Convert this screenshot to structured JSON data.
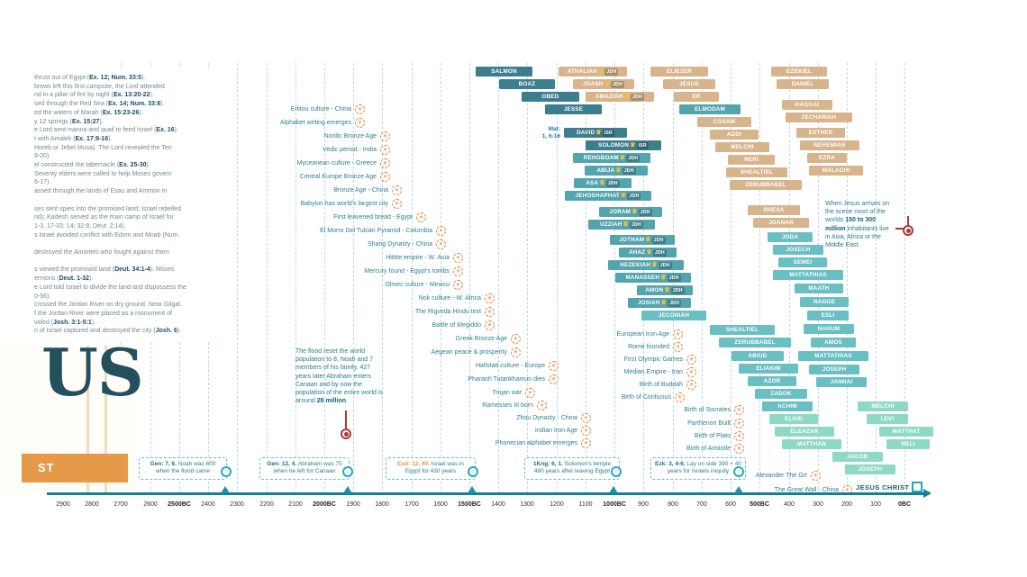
{
  "title": "Biblical genealogy and world history timeline",
  "icons": {
    "crown": "♛",
    "event": "*"
  },
  "colors": {
    "axis": "#177f93",
    "grid": "#2a96aa",
    "dark_teal": "#3d7e8e",
    "medium_teal": "#54a4ad",
    "light_teal": "#6abfc3",
    "pale_teal": "#8ed9c6",
    "tan": "#d7b48c",
    "orange": "#e8823c",
    "crimson": "#a83a3a",
    "callout_teal": "#2aa9c2",
    "text_teal": "#2e7f8e"
  },
  "chart_data": {
    "type": "bar",
    "title": "Genealogies of Jesus (Matthew & Luke) with kings, prophets and world events, 2900 BC to 0 BC",
    "x_range": [
      2900,
      0
    ],
    "axis": {
      "y": 548,
      "ticks": [
        [
          "2900",
          70
        ],
        [
          "2800",
          102
        ],
        [
          "2700",
          134
        ],
        [
          "2600",
          167
        ],
        [
          "2500BC",
          199
        ],
        [
          "2400",
          231
        ],
        [
          "2300",
          263
        ],
        [
          "2200",
          296
        ],
        [
          "2100",
          328
        ],
        [
          "2000BC",
          360
        ],
        [
          "1900",
          392
        ],
        [
          "1800",
          424
        ],
        [
          "1700",
          457
        ],
        [
          "1600",
          489
        ],
        [
          "1500BC",
          521
        ],
        [
          "1400",
          553
        ],
        [
          "1300",
          585
        ],
        [
          "1200",
          618
        ],
        [
          "1100",
          650
        ],
        [
          "1000BC",
          682
        ],
        [
          "900",
          714
        ],
        [
          "800",
          747
        ],
        [
          "700",
          779
        ],
        [
          "600",
          811
        ],
        [
          "500BC",
          843
        ],
        [
          "400",
          876
        ],
        [
          "300",
          908
        ],
        [
          "200",
          940
        ],
        [
          "100",
          972
        ],
        [
          "0BC",
          1004
        ]
      ],
      "gridlines": [
        134,
        167,
        199,
        231,
        263,
        296,
        328,
        360,
        392,
        424,
        457,
        489,
        521,
        553,
        585,
        618,
        650,
        682,
        714,
        747,
        779,
        811,
        843,
        876,
        908,
        940,
        972,
        1004
      ],
      "markers": [
        250,
        386,
        524,
        681,
        820
      ]
    },
    "bars": [
      [
        "SALMON",
        528,
        74,
        63,
        "dark"
      ],
      [
        "BOAZ",
        554,
        88,
        62,
        "dark"
      ],
      [
        "OBED",
        579,
        102,
        64,
        "dark"
      ],
      [
        "JESSE",
        605,
        116,
        63,
        "dark"
      ],
      [
        "DAVID",
        626,
        142,
        70,
        "dark",
        "ISR"
      ],
      [
        "SOLOMON",
        650,
        156,
        84,
        "dark",
        "ISR"
      ],
      [
        "REHOBOAM",
        636,
        170,
        86,
        "med",
        "JDH"
      ],
      [
        "ABIJA",
        649,
        184,
        70,
        "med",
        "JDH"
      ],
      [
        "ASA",
        637,
        198,
        64,
        "med",
        "JDH"
      ],
      [
        "JEHOSHAPHAT",
        627,
        212,
        96,
        "med",
        "JDH"
      ],
      [
        "JORAM",
        665,
        230,
        70,
        "med",
        "JDH"
      ],
      [
        "UZZIAH",
        653,
        244,
        74,
        "med",
        "JDH"
      ],
      [
        "JOTHAM",
        677,
        261,
        72,
        "med",
        "JDH"
      ],
      [
        "AHAZ",
        687,
        275,
        64,
        "med",
        "JDH"
      ],
      [
        "HEZEKIAH",
        675,
        289,
        84,
        "med",
        "JDH"
      ],
      [
        "MANASSEH",
        683,
        303,
        84,
        "med",
        "JDH"
      ],
      [
        "AMON",
        707,
        317,
        62,
        "med",
        "JDH"
      ],
      [
        "JOSIAH",
        697,
        331,
        70,
        "med",
        "JDH"
      ],
      [
        "JECONIAH",
        712,
        345,
        72,
        "light"
      ],
      [
        "SHEALTIEL",
        788,
        361,
        72,
        "light"
      ],
      [
        "ZERUBBABEL",
        798,
        375,
        80,
        "light"
      ],
      [
        "ABIUD",
        812,
        390,
        58,
        "light"
      ],
      [
        "ELIAKIM",
        820,
        404,
        66,
        "light"
      ],
      [
        "AZOR",
        830,
        418,
        54,
        "light"
      ],
      [
        "ZADOK",
        838,
        432,
        58,
        "light"
      ],
      [
        "ACHIM",
        846,
        446,
        56,
        "light"
      ],
      [
        "ELIUD",
        854,
        460,
        54,
        "pale"
      ],
      [
        "ELEAZAR",
        860,
        474,
        66,
        "pale"
      ],
      [
        "MATTHAN",
        868,
        488,
        66,
        "pale"
      ],
      [
        "JACOB",
        924,
        502,
        56,
        "pale"
      ],
      [
        "JOSEPH",
        938,
        516,
        56,
        "pale"
      ],
      [
        "JESUS CHRIST",
        950,
        535,
        60,
        "christ"
      ],
      [
        "ATHALIAH",
        620,
        74,
        76,
        "tan",
        "JDH"
      ],
      [
        "JOASH",
        636,
        88,
        68,
        "tan",
        "JDH"
      ],
      [
        "AMAZIAH",
        650,
        102,
        76,
        "tan",
        "JDH"
      ],
      [
        "ELIEZER",
        722,
        74,
        64,
        "tan"
      ],
      [
        "JESUS",
        736,
        88,
        58,
        "tan"
      ],
      [
        "ER",
        748,
        102,
        50,
        "tan"
      ],
      [
        "ELMODAM",
        754,
        116,
        68,
        "med"
      ],
      [
        "COSAM",
        774,
        130,
        60,
        "tan"
      ],
      [
        "ADDI",
        788,
        144,
        54,
        "tan"
      ],
      [
        "MELCHI",
        794,
        158,
        60,
        "tan"
      ],
      [
        "NERI",
        808,
        172,
        52,
        "tan"
      ],
      [
        "SHEALTIEL",
        806,
        186,
        68,
        "tan"
      ],
      [
        "ZERUBBABEL",
        810,
        200,
        80,
        "tan"
      ],
      [
        "RHESA",
        830,
        228,
        58,
        "tan"
      ],
      [
        "JOANAN",
        836,
        242,
        62,
        "tan"
      ],
      [
        "JODA",
        852,
        258,
        50,
        "light"
      ],
      [
        "JOSECH",
        858,
        272,
        56,
        "light"
      ],
      [
        "SEMEI",
        864,
        286,
        54,
        "light"
      ],
      [
        "MATTATHIAS",
        858,
        300,
        78,
        "light"
      ],
      [
        "MAATH",
        882,
        315,
        54,
        "light"
      ],
      [
        "NAGGE",
        888,
        330,
        54,
        "light"
      ],
      [
        "ESLI",
        896,
        345,
        46,
        "light"
      ],
      [
        "NAHUM",
        892,
        360,
        56,
        "light"
      ],
      [
        "AMOS",
        900,
        375,
        50,
        "light"
      ],
      [
        "MATTATHIAS",
        886,
        390,
        78,
        "light"
      ],
      [
        "JOSEPH",
        898,
        405,
        56,
        "light"
      ],
      [
        "JANNAI",
        906,
        419,
        56,
        "light"
      ],
      [
        "MELCHI",
        952,
        446,
        56,
        "pale"
      ],
      [
        "LEVI",
        962,
        460,
        46,
        "pale"
      ],
      [
        "MATTHAT",
        976,
        474,
        60,
        "pale"
      ],
      [
        "HELI",
        984,
        488,
        48,
        "pale"
      ],
      [
        "EZEKIEL",
        856,
        74,
        62,
        "tan"
      ],
      [
        "DANIEL",
        862,
        88,
        58,
        "tan"
      ],
      [
        "HAGGAI",
        868,
        111,
        56,
        "tan"
      ],
      [
        "ZECHARIAH",
        872,
        125,
        74,
        "tan"
      ],
      [
        "ESTHER",
        884,
        142,
        54,
        "tan"
      ],
      [
        "NEHEMIAH",
        888,
        156,
        66,
        "tan"
      ],
      [
        "EZRA",
        896,
        170,
        44,
        "tan"
      ],
      [
        "MALACHI",
        898,
        184,
        60,
        "tan"
      ]
    ],
    "world_events": [
      [
        "Erlitou culture - China",
        399,
        121
      ],
      [
        "Alphabet writing emerges",
        399,
        136
      ],
      [
        "Nordic Bronze Age",
        427,
        151
      ],
      [
        "Vedic period - India",
        427,
        166
      ],
      [
        "Myceanean culture - Greece",
        427,
        181
      ],
      [
        "Central Europe Bronze Age",
        427,
        196
      ],
      [
        "Bronze Age - China",
        440,
        211
      ],
      [
        "Babylon has world's largest city",
        440,
        226
      ],
      [
        "First leavened bread - Egypt",
        467,
        241
      ],
      [
        "El Morro Del Tulcán Pyramid - Columbia",
        489,
        256
      ],
      [
        "Shang Dynasty - China",
        489,
        271
      ],
      [
        "Hittite empire - W. Asia",
        508,
        286
      ],
      [
        "Mercury found - Egypt's tombs",
        508,
        301
      ],
      [
        "Olmec culture - Mexico",
        508,
        316
      ],
      [
        "Nok culture - W. Africa",
        543,
        331
      ],
      [
        "The Rigveda Hindu text",
        543,
        346
      ],
      [
        "Battle of Megiddo",
        543,
        361
      ],
      [
        "Greek Bronze Age",
        572,
        376
      ],
      [
        "Aegean peace & prosperity",
        572,
        391
      ],
      [
        "Hallstatt culture - Europe",
        614,
        406
      ],
      [
        "Pharaoh Tutankhamun dies",
        614,
        421
      ],
      [
        "Trojan war",
        588,
        436
      ],
      [
        "Ramesses III born",
        601,
        450
      ],
      [
        "Zhou Dynasty - China",
        650,
        464
      ],
      [
        "Indian Iron Age",
        650,
        478
      ],
      [
        "Phonecian alphabet emerges",
        650,
        492
      ],
      [
        "European Iron Age",
        752,
        371
      ],
      [
        "Rome founded",
        752,
        385
      ],
      [
        "First Olympic Games",
        767,
        399
      ],
      [
        "Median Empire - Iran",
        767,
        413
      ],
      [
        "Birth of Buddah",
        767,
        427
      ],
      [
        "Birth of Confucius",
        754,
        441
      ],
      [
        "Birth of Socrates",
        820,
        455
      ],
      [
        "Parthenon Built",
        820,
        470
      ],
      [
        "Birth of Plato",
        820,
        484
      ],
      [
        "Birth of Aristotle",
        820,
        498
      ],
      [
        "Alexander The Grt",
        905,
        528
      ],
      [
        "The Great Wall - China",
        940,
        544
      ]
    ],
    "callouts": [
      {
        "ref": "Gen: 7, 6.",
        "text": "Noah was 600 when the flood came",
        "x": 154,
        "w": 88,
        "icon_x": 251,
        "hl": false
      },
      {
        "ref": "Gen: 12, 4.",
        "text": "Abraham was 75 when he left for Canaan",
        "x": 288,
        "w": 90,
        "icon_x": 386,
        "hl": false
      },
      {
        "ref": "Exd: 12, 40.",
        "text": "Israel was in Egypt for 430 years",
        "x": 428,
        "w": 90,
        "icon_x": 525,
        "hl": true
      },
      {
        "ref": "1Kng: 6, 1.",
        "text": "Solomon's temple 480 years after leaving Egypt",
        "x": 582,
        "w": 96,
        "icon_x": 684,
        "hl": false
      },
      {
        "ref": "Ezk: 3, 4-6.",
        "text": "Lay on side 390 + 40 years for Israels iniquity",
        "x": 722,
        "w": 96,
        "icon_x": 820,
        "hl": false
      }
    ],
    "annotations": {
      "flood": {
        "parts": [
          {
            "t": "The flood reset the world population to 8, Noah and 7 members of his family.  427 years later Abraham enters Canaan and by now the population of the entire world is around ",
            "b": false
          },
          {
            "t": "28 million",
            "b": true
          },
          {
            "t": ".",
            "b": false
          }
        ]
      },
      "population": {
        "parts": [
          {
            "t": "When Jesus arrives on the scene most of the worlds ",
            "b": false
          },
          {
            "t": "150 to 300 million",
            "b": true
          },
          {
            "t": " inhabitants live in Asia, Africa or the Middle East.",
            "b": false
          }
        ]
      }
    }
  },
  "matthew_ref": {
    "line1": "Mat:",
    "line2": "1, 6-16"
  },
  "logo": {
    "big_text": "US",
    "band_text": "ST"
  },
  "left_notes": {
    "lines": [
      "thrust out of Egypt (Ex. 12; Num. 33:5).",
      "brews left this first campsite, the Lord attended",
      "nd in a pillar of fire by night (Ex. 13:20-22).",
      "sed through the Red Sea (Ex. 14; Num. 33:8).",
      "ed the waters of Marah (Ex. 15:23-26).",
      "y 12 springs (Ex. 15:27).",
      "e Lord sent manna and quail to feed Israel (Ex. 16).",
      "t with Amalek (Ex. 17:8-16).",
      "Horeb or Jebel Musa). The Lord revealed the Ten",
      "9-20).",
      "el constructed the tabernacle (Ex. 25-30).",
      "Seventy elders were called to help Moses govern",
      "6-17).",
      "assed through the lands of Esau and Ammon in",
      "",
      "ses sent spies into the promised land; Israel rebelled",
      "nd); Kadesh served as the main camp of Israel for",
      "1-3, 17-33; 14; 32:8; Deut. 2:14).",
      "s Israel avoided conflict with Edom and Moab (Num.",
      "",
      "destroyed the Amorites who fought against them",
      "",
      "s viewed the promised land (Deut. 34:1-4). Moses",
      "ermons (Deut. 1-32).",
      "e Lord told Israel to divide the land and dispossess the",
      "0-56).",
      "crossed the Jordan River on dry ground. Near Gilgal,",
      "f the Jordan River were placed as a monument of",
      "vided (Josh. 3:1-5:1).",
      "n of Israel captured and destroyed the city (Josh. 6)."
    ]
  }
}
